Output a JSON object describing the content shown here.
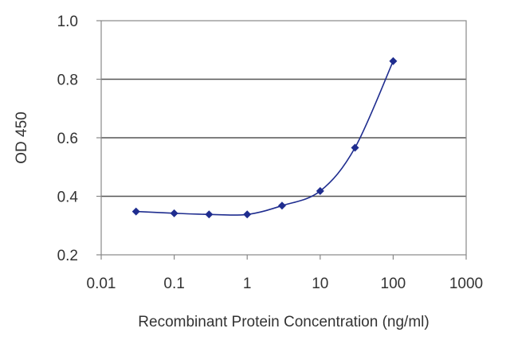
{
  "chart_data": {
    "type": "line",
    "title": "",
    "xlabel": "Recombinant Protein Concentration (ng/ml)",
    "ylabel": "OD 450",
    "x_scale": "log",
    "xlim": [
      0.01,
      1000
    ],
    "ylim": [
      0.2,
      1.0
    ],
    "x_ticks": [
      "0.01",
      "0.1",
      "1",
      "10",
      "100",
      "1000"
    ],
    "y_ticks": [
      "0.2",
      "0.4",
      "0.6",
      "0.8",
      "1.0"
    ],
    "grid": "horizontal",
    "series": [
      {
        "x": [
          0.03,
          0.1,
          0.3,
          1,
          3,
          10,
          30,
          100
        ],
        "y": [
          0.348,
          0.342,
          0.338,
          0.338,
          0.368,
          0.418,
          0.566,
          0.862
        ]
      }
    ],
    "colors": {
      "series": "#1f2d8f",
      "grid": "#555555",
      "axis": "#888888"
    }
  }
}
